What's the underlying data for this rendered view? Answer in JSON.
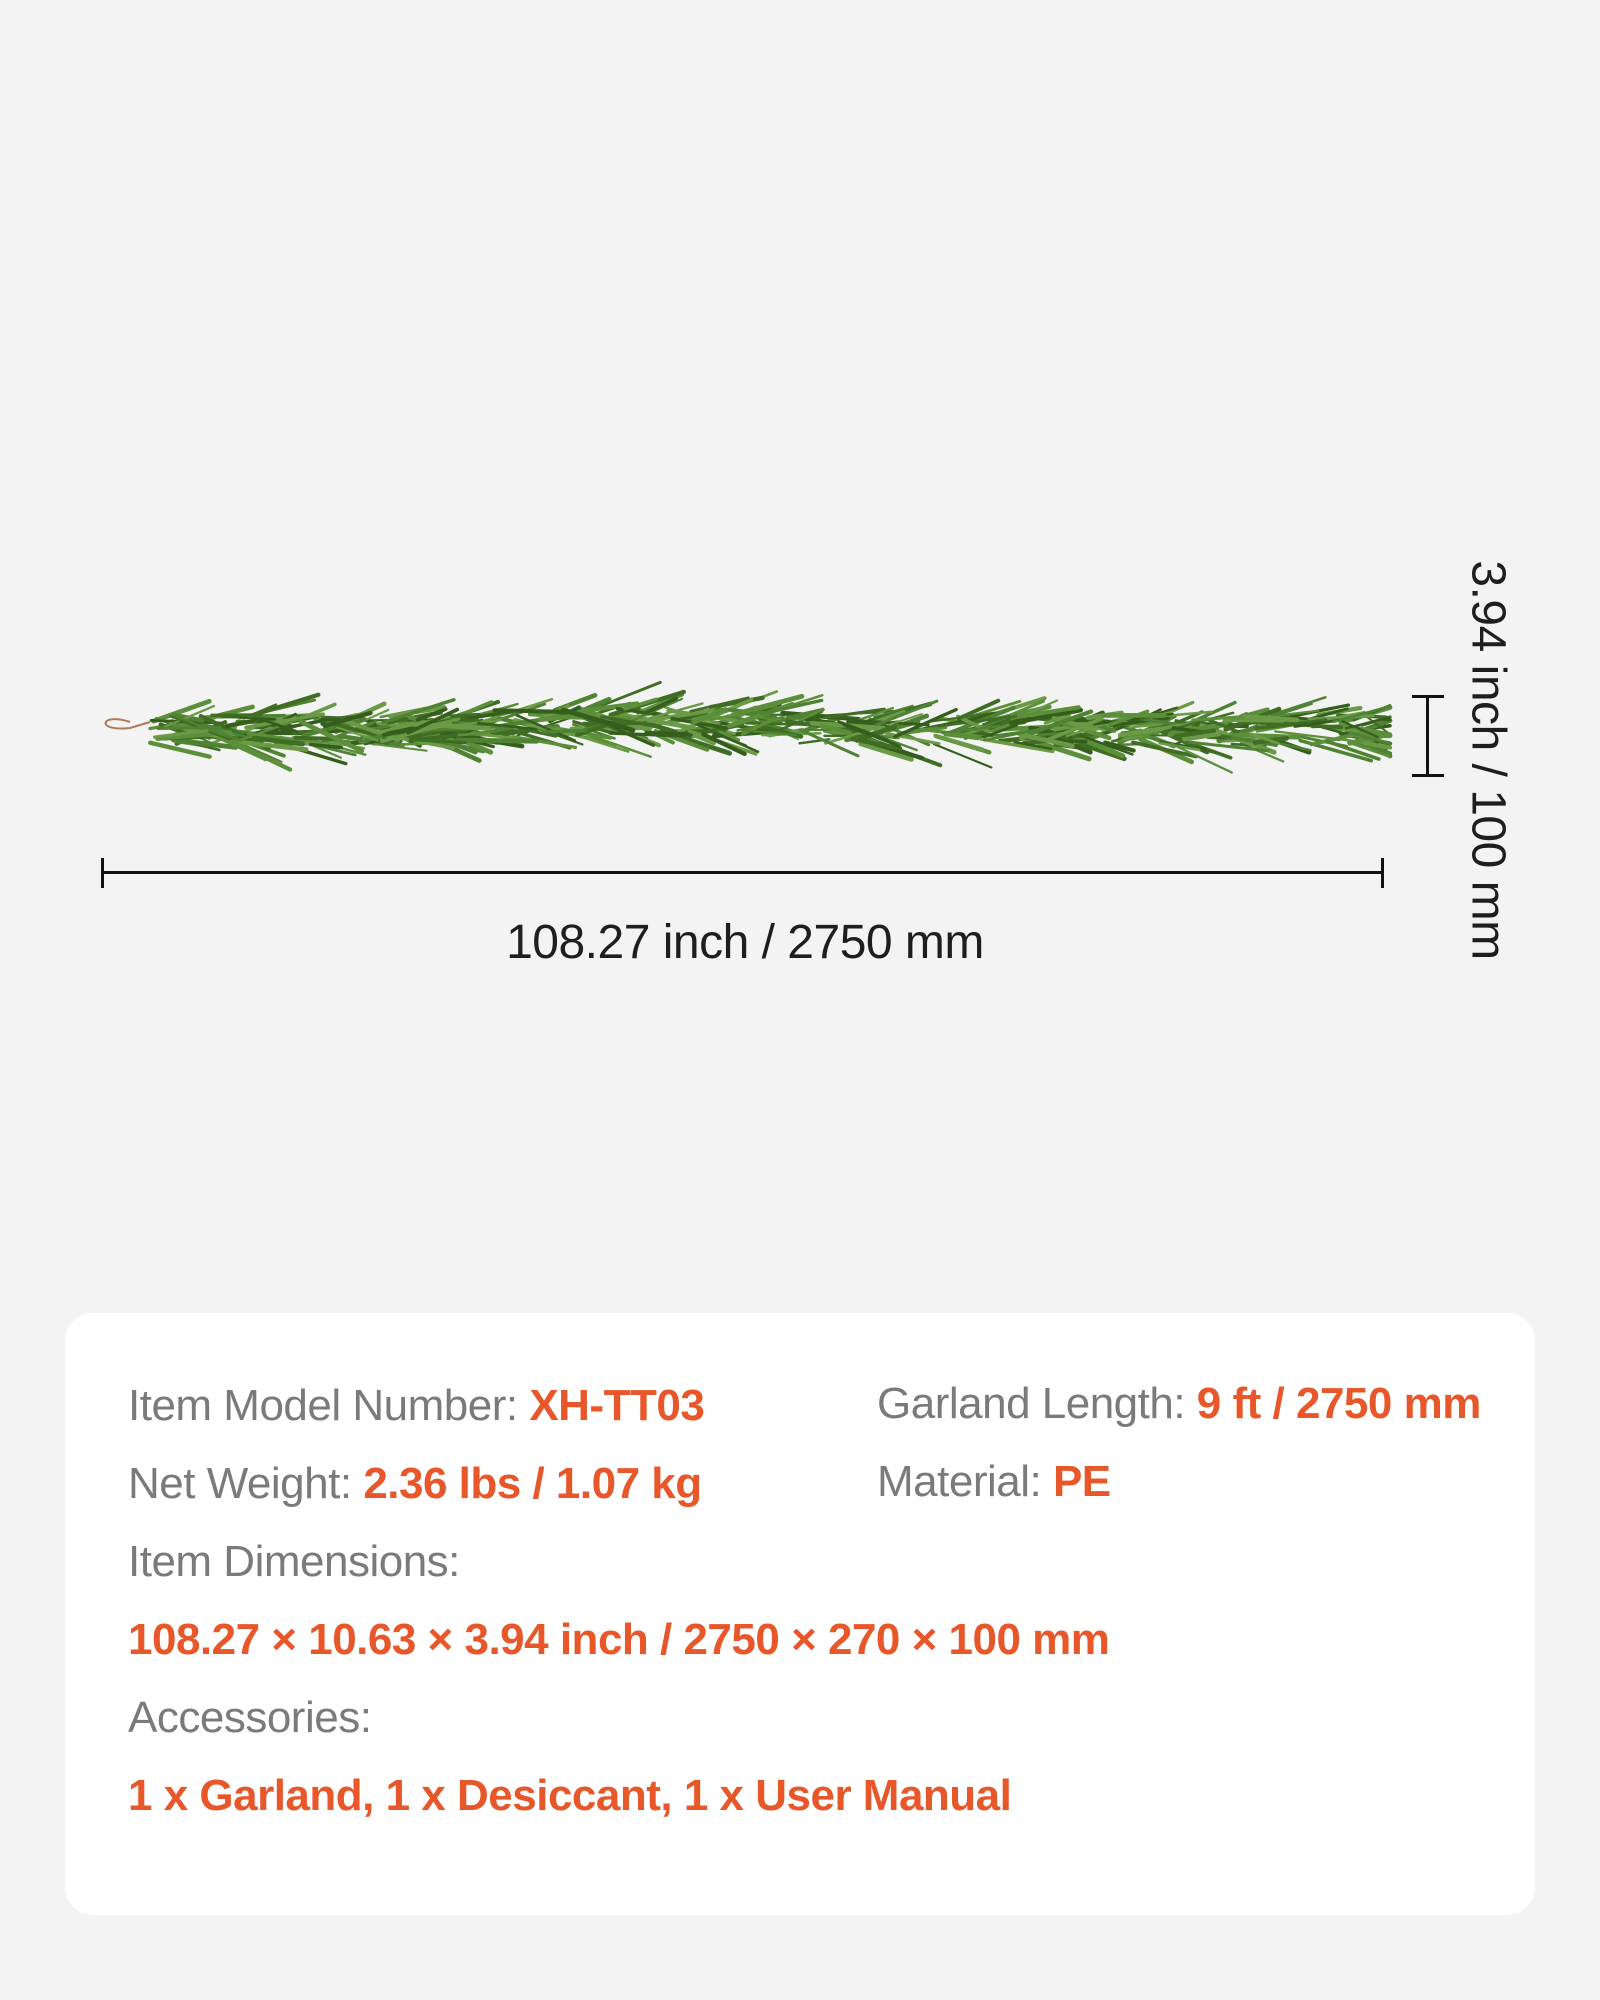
{
  "dimensions": {
    "length_label": "108.27 inch / 2750 mm",
    "height_label": "3.94 inch / 100 mm"
  },
  "specs": {
    "model": {
      "label": "Item Model Number:",
      "value": "XH-TT03"
    },
    "length": {
      "label": "Garland Length:",
      "value": "9 ft / 2750 mm"
    },
    "weight": {
      "label": "Net Weight:",
      "value": "2.36 lbs / 1.07 kg"
    },
    "material": {
      "label": "Material:",
      "value": "PE"
    },
    "dimensions": {
      "label": "Item Dimensions:",
      "value": "108.27 × 10.63 × 3.94 inch / 2750 × 270 × 100 mm"
    },
    "accessories": {
      "label": "Accessories:",
      "value": "1 x Garland, 1 x Desiccant, 1 x User Manual"
    }
  },
  "colors": {
    "accent": "#e8572a",
    "label": "#7a7a7a",
    "foliage": "#4a7a2c",
    "background": "#f3f3f3"
  }
}
